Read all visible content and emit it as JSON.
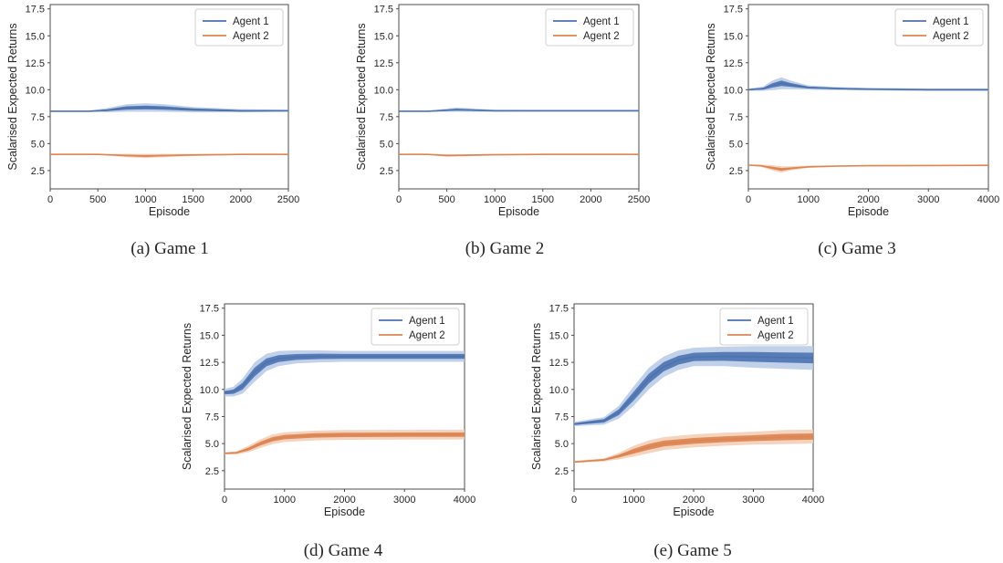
{
  "figure": {
    "captions": [
      "(a) Game 1",
      "(b) Game 2",
      "(c) Game 3",
      "(d) Game 4",
      "(e) Game 5"
    ]
  },
  "colors": {
    "agent1": "#4c72b0",
    "agent1_band": "#b7c9e6",
    "agent2": "#dd8452",
    "agent2_band": "#f3cdb4",
    "axes": "#4d4d4d"
  },
  "chart_data": [
    {
      "type": "line",
      "caption": "(a) Game 1",
      "xlabel": "Episode",
      "ylabel": "Scalarised Expected Returns",
      "xlim": [
        0,
        2500
      ],
      "ylim": [
        0.8,
        17.9
      ],
      "xticks": [
        0,
        500,
        1000,
        1500,
        2000,
        2500
      ],
      "yticks": [
        2.5,
        5.0,
        7.5,
        10.0,
        12.5,
        15.0,
        17.5
      ],
      "grid": false,
      "legend": {
        "position": "top-right",
        "entries": [
          "Agent 1",
          "Agent 2"
        ]
      },
      "series": [
        {
          "name": "Agent 1",
          "x": [
            0,
            400,
            600,
            800,
            1000,
            1200,
            1500,
            2000,
            2500
          ],
          "y": [
            8.0,
            8.0,
            8.1,
            8.3,
            8.35,
            8.3,
            8.15,
            8.05,
            8.05
          ],
          "band": [
            0.05,
            0.05,
            0.2,
            0.35,
            0.4,
            0.35,
            0.25,
            0.15,
            0.1
          ]
        },
        {
          "name": "Agent 2",
          "x": [
            0,
            500,
            800,
            1000,
            1200,
            1500,
            2000,
            2500
          ],
          "y": [
            4.0,
            4.0,
            3.9,
            3.85,
            3.9,
            3.95,
            4.0,
            4.0
          ],
          "band": [
            0.03,
            0.05,
            0.15,
            0.2,
            0.15,
            0.1,
            0.05,
            0.05
          ]
        }
      ]
    },
    {
      "type": "line",
      "caption": "(b) Game 2",
      "xlabel": "Episode",
      "ylabel": "Scalarised Expected Returns",
      "xlim": [
        0,
        2500
      ],
      "ylim": [
        0.8,
        17.9
      ],
      "xticks": [
        0,
        500,
        1000,
        1500,
        2000,
        2500
      ],
      "yticks": [
        2.5,
        5.0,
        7.5,
        10.0,
        12.5,
        15.0,
        17.5
      ],
      "grid": false,
      "legend": {
        "position": "top-right",
        "entries": [
          "Agent 1",
          "Agent 2"
        ]
      },
      "series": [
        {
          "name": "Agent 1",
          "x": [
            0,
            300,
            500,
            600,
            800,
            1000,
            1500,
            2000,
            2500
          ],
          "y": [
            8.0,
            8.0,
            8.1,
            8.15,
            8.1,
            8.05,
            8.05,
            8.05,
            8.05
          ],
          "band": [
            0.05,
            0.05,
            0.15,
            0.2,
            0.15,
            0.1,
            0.08,
            0.08,
            0.08
          ]
        },
        {
          "name": "Agent 2",
          "x": [
            0,
            300,
            500,
            700,
            1000,
            1500,
            2500
          ],
          "y": [
            4.0,
            4.0,
            3.9,
            3.92,
            3.97,
            4.0,
            4.0
          ],
          "band": [
            0.03,
            0.05,
            0.12,
            0.1,
            0.06,
            0.05,
            0.05
          ]
        }
      ]
    },
    {
      "type": "line",
      "caption": "(c) Game 3",
      "xlabel": "Episode",
      "ylabel": "Scalarised Expected Returns",
      "xlim": [
        0,
        4000
      ],
      "ylim": [
        0.8,
        17.9
      ],
      "xticks": [
        0,
        1000,
        2000,
        3000,
        4000
      ],
      "yticks": [
        2.5,
        5.0,
        7.5,
        10.0,
        12.5,
        15.0,
        17.5
      ],
      "grid": false,
      "legend": {
        "position": "top-right",
        "entries": [
          "Agent 1",
          "Agent 2"
        ]
      },
      "series": [
        {
          "name": "Agent 1",
          "x": [
            0,
            250,
            400,
            550,
            700,
            1000,
            1500,
            2000,
            3000,
            4000
          ],
          "y": [
            10.0,
            10.1,
            10.4,
            10.6,
            10.45,
            10.2,
            10.1,
            10.05,
            10.0,
            10.0
          ],
          "band": [
            0.1,
            0.2,
            0.45,
            0.55,
            0.4,
            0.2,
            0.15,
            0.12,
            0.12,
            0.12
          ]
        },
        {
          "name": "Agent 2",
          "x": [
            0,
            200,
            400,
            550,
            700,
            1000,
            1500,
            2000,
            3000,
            4000
          ],
          "y": [
            3.0,
            2.95,
            2.75,
            2.6,
            2.7,
            2.85,
            2.92,
            2.95,
            2.97,
            2.98
          ],
          "band": [
            0.05,
            0.1,
            0.25,
            0.3,
            0.2,
            0.1,
            0.06,
            0.05,
            0.05,
            0.05
          ]
        }
      ]
    },
    {
      "type": "line",
      "caption": "(d) Game 4",
      "xlabel": "Episode",
      "ylabel": "Scalarised Expected Returns",
      "xlim": [
        0,
        4000
      ],
      "ylim": [
        0.8,
        17.9
      ],
      "xticks": [
        0,
        1000,
        2000,
        3000,
        4000
      ],
      "yticks": [
        2.5,
        5.0,
        7.5,
        10.0,
        12.5,
        15.0,
        17.5
      ],
      "grid": false,
      "legend": {
        "position": "top-right",
        "entries": [
          "Agent 1",
          "Agent 2"
        ]
      },
      "series": [
        {
          "name": "Agent 1",
          "x": [
            0,
            150,
            300,
            500,
            700,
            900,
            1200,
            1600,
            2000,
            3000,
            4000
          ],
          "y": [
            9.7,
            9.8,
            10.3,
            11.6,
            12.5,
            12.85,
            13.0,
            13.05,
            13.05,
            13.05,
            13.05
          ],
          "band": [
            0.35,
            0.45,
            0.7,
            0.9,
            0.8,
            0.7,
            0.6,
            0.55,
            0.5,
            0.5,
            0.5
          ]
        },
        {
          "name": "Agent 2",
          "x": [
            0,
            200,
            400,
            600,
            800,
            1000,
            1500,
            2000,
            3000,
            4000
          ],
          "y": [
            4.1,
            4.15,
            4.5,
            5.0,
            5.4,
            5.6,
            5.75,
            5.8,
            5.82,
            5.83
          ],
          "band": [
            0.1,
            0.15,
            0.3,
            0.4,
            0.45,
            0.45,
            0.45,
            0.45,
            0.45,
            0.45
          ]
        }
      ]
    },
    {
      "type": "line",
      "caption": "(e) Game 5",
      "xlabel": "Episode",
      "ylabel": "Scalarised Expected Returns",
      "xlim": [
        0,
        4000
      ],
      "ylim": [
        0.8,
        17.9
      ],
      "xticks": [
        0,
        1000,
        2000,
        3000,
        4000
      ],
      "yticks": [
        2.5,
        5.0,
        7.5,
        10.0,
        12.5,
        15.0,
        17.5
      ],
      "grid": false,
      "legend": {
        "position": "top-right",
        "entries": [
          "Agent 1",
          "Agent 2"
        ]
      },
      "series": [
        {
          "name": "Agent 1",
          "x": [
            0,
            500,
            750,
            1000,
            1250,
            1500,
            1750,
            2000,
            2500,
            3000,
            3500,
            4000
          ],
          "y": [
            6.8,
            7.1,
            7.9,
            9.4,
            11.0,
            12.1,
            12.7,
            13.0,
            13.05,
            13.0,
            12.95,
            12.9
          ],
          "band": [
            0.2,
            0.35,
            0.6,
            0.9,
            1.0,
            0.95,
            0.9,
            0.85,
            0.9,
            1.0,
            1.05,
            1.1
          ]
        },
        {
          "name": "Agent 2",
          "x": [
            0,
            500,
            750,
            1000,
            1250,
            1500,
            2000,
            2500,
            3000,
            3500,
            4000
          ],
          "y": [
            3.3,
            3.5,
            3.85,
            4.3,
            4.7,
            5.0,
            5.25,
            5.4,
            5.5,
            5.6,
            5.65
          ],
          "band": [
            0.1,
            0.15,
            0.3,
            0.5,
            0.6,
            0.6,
            0.6,
            0.6,
            0.6,
            0.65,
            0.65
          ]
        }
      ]
    }
  ]
}
